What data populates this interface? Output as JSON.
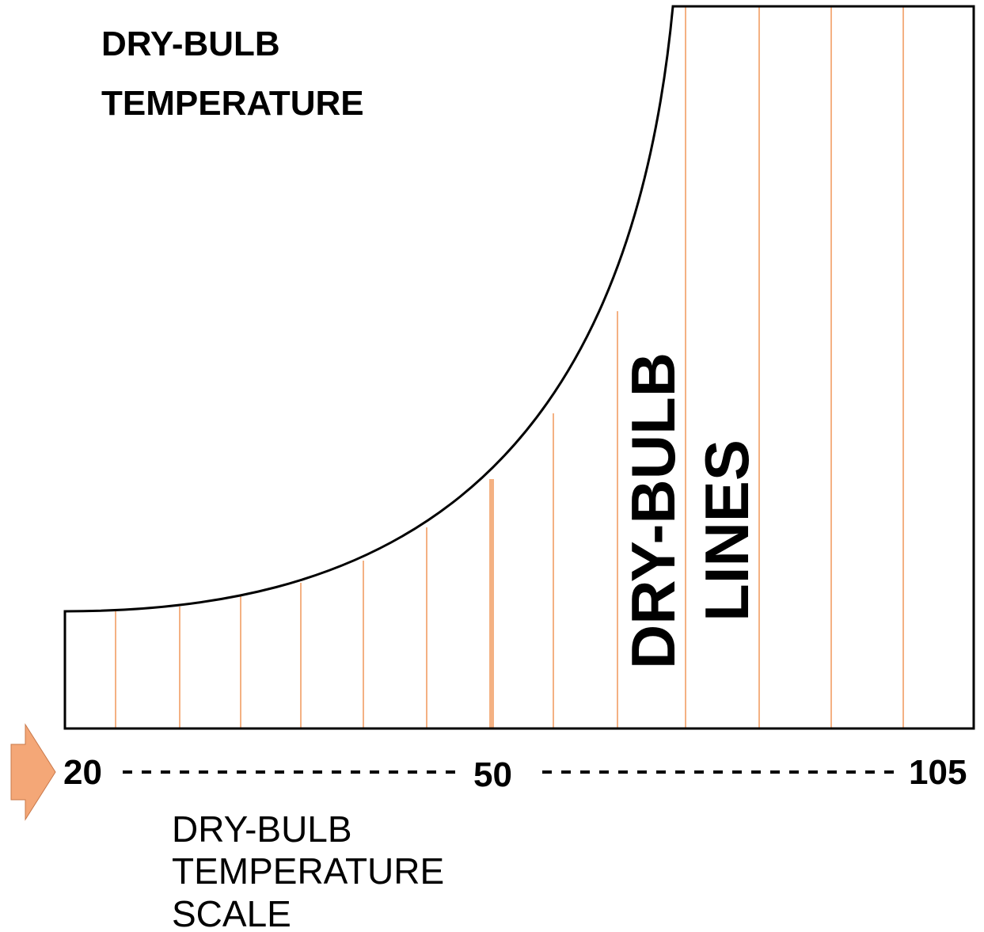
{
  "title": [
    "DRY-BULB",
    "TEMPERATURE"
  ],
  "lines_label": [
    "DRY-BULB",
    "LINES"
  ],
  "scale": {
    "labels": [
      "20",
      "50",
      "105"
    ],
    "caption": [
      "DRY-BULB",
      "TEMPERATURE",
      "SCALE"
    ]
  }
}
